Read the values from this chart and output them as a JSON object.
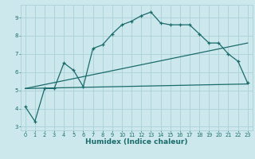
{
  "xlabel": "Humidex (Indice chaleur)",
  "ylabel": "",
  "bg_color": "#cce8ec",
  "grid_color": "#aad0d8",
  "line_color": "#1a6b6b",
  "xlim": [
    -0.5,
    23.5
  ],
  "ylim": [
    2.8,
    9.7
  ],
  "yticks": [
    3,
    4,
    5,
    6,
    7,
    8,
    9
  ],
  "xticks": [
    0,
    1,
    2,
    3,
    4,
    5,
    6,
    7,
    8,
    9,
    10,
    11,
    12,
    13,
    14,
    15,
    16,
    17,
    18,
    19,
    20,
    21,
    22,
    23
  ],
  "curve1_x": [
    0,
    1,
    2,
    3,
    4,
    5,
    6,
    7,
    8,
    9,
    10,
    11,
    12,
    13,
    14,
    15,
    16,
    17,
    18,
    19,
    20,
    21,
    22,
    23
  ],
  "curve1_y": [
    4.1,
    3.3,
    5.1,
    5.1,
    6.5,
    6.1,
    5.2,
    7.3,
    7.5,
    8.1,
    8.6,
    8.8,
    9.1,
    9.3,
    8.7,
    8.6,
    8.6,
    8.6,
    8.1,
    7.6,
    7.6,
    7.0,
    6.6,
    5.4
  ],
  "line2_x": [
    0,
    23
  ],
  "line2_y": [
    5.1,
    5.35
  ],
  "line3_x": [
    0,
    23
  ],
  "line3_y": [
    5.1,
    7.6
  ]
}
